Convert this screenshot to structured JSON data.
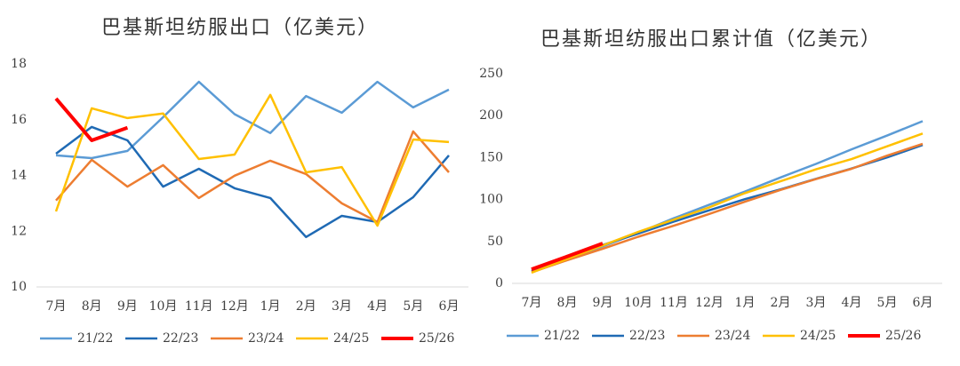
{
  "chart_data": [
    {
      "type": "line",
      "title": "巴基斯坦纺服出口（亿美元）",
      "categories": [
        "7月",
        "8月",
        "9月",
        "10月",
        "11月",
        "12月",
        "1月",
        "2月",
        "3月",
        "4月",
        "5月",
        "6月"
      ],
      "ylim": [
        10,
        18
      ],
      "yticks": [
        10,
        12,
        14,
        16,
        18
      ],
      "series": [
        {
          "name": "21/22",
          "color": "#5b9bd5",
          "values": [
            14.72,
            14.62,
            14.88,
            16.09,
            17.36,
            16.2,
            15.52,
            16.85,
            16.25,
            17.36,
            16.44,
            17.08
          ]
        },
        {
          "name": "22/23",
          "color": "#1f6ab4",
          "values": [
            14.78,
            15.74,
            15.26,
            13.6,
            14.24,
            13.54,
            13.19,
            11.79,
            12.55,
            12.33,
            13.22,
            14.72
          ]
        },
        {
          "name": "23/24",
          "color": "#ed7d31",
          "values": [
            13.1,
            14.56,
            13.6,
            14.37,
            13.19,
            13.99,
            14.53,
            14.05,
            13.0,
            12.33,
            15.58,
            14.11
          ]
        },
        {
          "name": "24/25",
          "color": "#ffc000",
          "values": [
            12.71,
            16.41,
            16.06,
            16.22,
            14.59,
            14.75,
            16.89,
            14.11,
            14.3,
            12.2,
            15.29,
            15.2
          ]
        },
        {
          "name": "25/26",
          "color": "#ff0000",
          "values": [
            16.76,
            15.26,
            15.71,
            null,
            null,
            null,
            null,
            null,
            null,
            null,
            null,
            null
          ]
        }
      ]
    },
    {
      "type": "line",
      "title": "巴基斯坦纺服出口累计值（亿美元）",
      "categories": [
        "7月",
        "8月",
        "9月",
        "10月",
        "11月",
        "12月",
        "1月",
        "2月",
        "3月",
        "4月",
        "5月",
        "6月"
      ],
      "ylim": [
        0,
        250
      ],
      "yticks": [
        0,
        50,
        100,
        150,
        200,
        250
      ],
      "series": [
        {
          "name": "21/22",
          "color": "#5b9bd5",
          "values": [
            14.7,
            29.3,
            44.2,
            60.3,
            77.7,
            93.9,
            109.4,
            126.3,
            142.5,
            159.9,
            176.3,
            193.4
          ]
        },
        {
          "name": "22/23",
          "color": "#1f6ab4",
          "values": [
            14.8,
            30.5,
            45.8,
            59.4,
            73.6,
            87.2,
            100.4,
            112.1,
            124.7,
            137.0,
            150.2,
            165.0
          ]
        },
        {
          "name": "23/24",
          "color": "#ed7d31",
          "values": [
            13.1,
            27.7,
            41.3,
            55.6,
            68.8,
            82.8,
            97.3,
            111.4,
            124.4,
            136.7,
            152.3,
            166.4
          ]
        },
        {
          "name": "24/25",
          "color": "#ffc000",
          "values": [
            12.7,
            29.1,
            45.2,
            61.4,
            76.0,
            90.7,
            107.6,
            121.7,
            136.0,
            148.2,
            163.5,
            178.7
          ]
        },
        {
          "name": "25/26",
          "color": "#ff0000",
          "values": [
            16.8,
            32.0,
            47.7,
            null,
            null,
            null,
            null,
            null,
            null,
            null,
            null,
            null
          ]
        }
      ]
    }
  ]
}
